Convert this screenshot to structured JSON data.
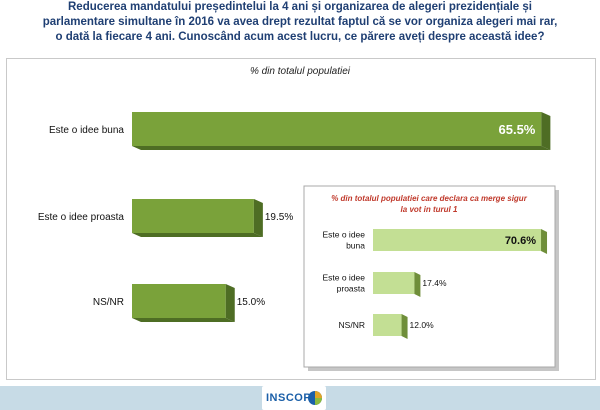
{
  "title_lines": [
    "Reducerea mandatului președintelui la 4 ani și organizarea de alegeri prezidențiale și",
    "parlamentare simultane în 2016 va avea drept rezultat faptul că se vor organiza alegeri mai rar,",
    "o dată la fiecare 4 ani. Cunoscând acum acest lucru, ce părere aveți despre această idee?"
  ],
  "logo": {
    "text": "INSCOP"
  },
  "colors": {
    "main_bar": "#7aa23a",
    "main_bar_dark": "#4e6d24",
    "inset_bar": "#c3df94",
    "inset_bar_dark": "#6f8e3a",
    "inset_title": "#c0392b",
    "footer": "#c7dbe6"
  },
  "chart_data": [
    {
      "type": "bar",
      "orientation": "horizontal",
      "title": "% din totalul populatiei",
      "categories": [
        "Este o idee buna",
        "Este o idee proasta",
        "NS/NR"
      ],
      "values": [
        65.5,
        19.5,
        15.0
      ],
      "value_labels": [
        "65.5%",
        "19.5%",
        "15.0%"
      ],
      "xlim": [
        0,
        70
      ]
    },
    {
      "type": "bar",
      "orientation": "horizontal",
      "title_lines": [
        "% din totalul populatiei care declara ca merge sigur",
        "la vot in turul 1"
      ],
      "categories": [
        [
          "Este o idee",
          "buna"
        ],
        [
          "Este o idee",
          "proasta"
        ],
        [
          "NS/NR"
        ]
      ],
      "values": [
        70.6,
        17.4,
        12.0
      ],
      "value_labels": [
        "70.6%",
        "17.4%",
        "12.0%"
      ],
      "xlim": [
        0,
        75
      ]
    }
  ]
}
